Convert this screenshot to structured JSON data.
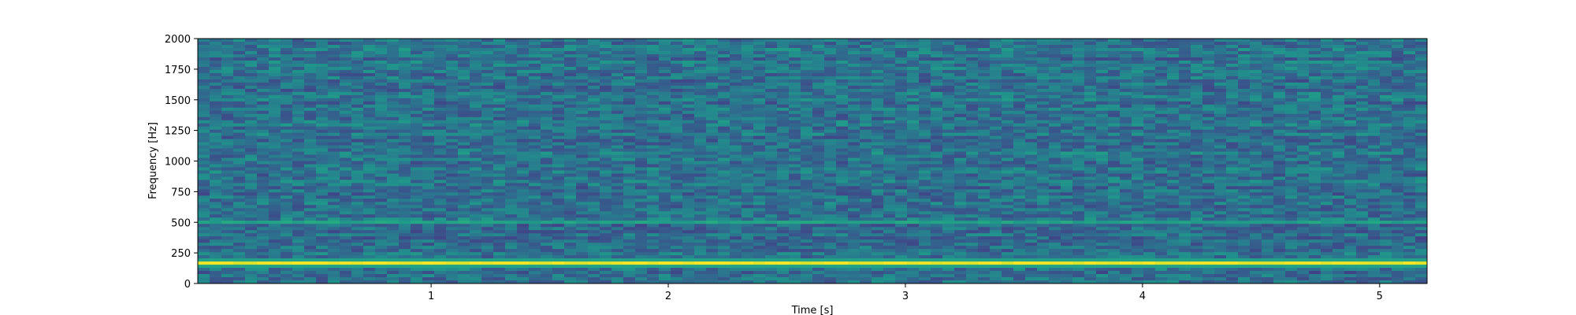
{
  "chart_data": {
    "type": "heatmap",
    "title": "",
    "xlabel": "Time [s]",
    "ylabel": "Frequency [Hz]",
    "xlim": [
      0.016,
      5.2
    ],
    "ylim": [
      0,
      2000
    ],
    "xticks": [
      1,
      2,
      3,
      4,
      5
    ],
    "xtick_labels": [
      "1",
      "2",
      "3",
      "4",
      "5"
    ],
    "yticks": [
      0,
      250,
      500,
      750,
      1000,
      1250,
      1500,
      1750,
      2000
    ],
    "ytick_labels": [
      "0",
      "250",
      "500",
      "750",
      "1000",
      "1250",
      "1500",
      "1750",
      "2000"
    ],
    "colormap": "viridis",
    "grid": false,
    "legend": "none",
    "features": {
      "dominant_tone_hz": 170,
      "secondary_tone_hz": 510,
      "background": "broadband noise"
    }
  },
  "colors": {
    "viridis_low": "#440154",
    "viridis_mid": "#21908d",
    "viridis_high": "#fde725",
    "axis": "#000000"
  }
}
